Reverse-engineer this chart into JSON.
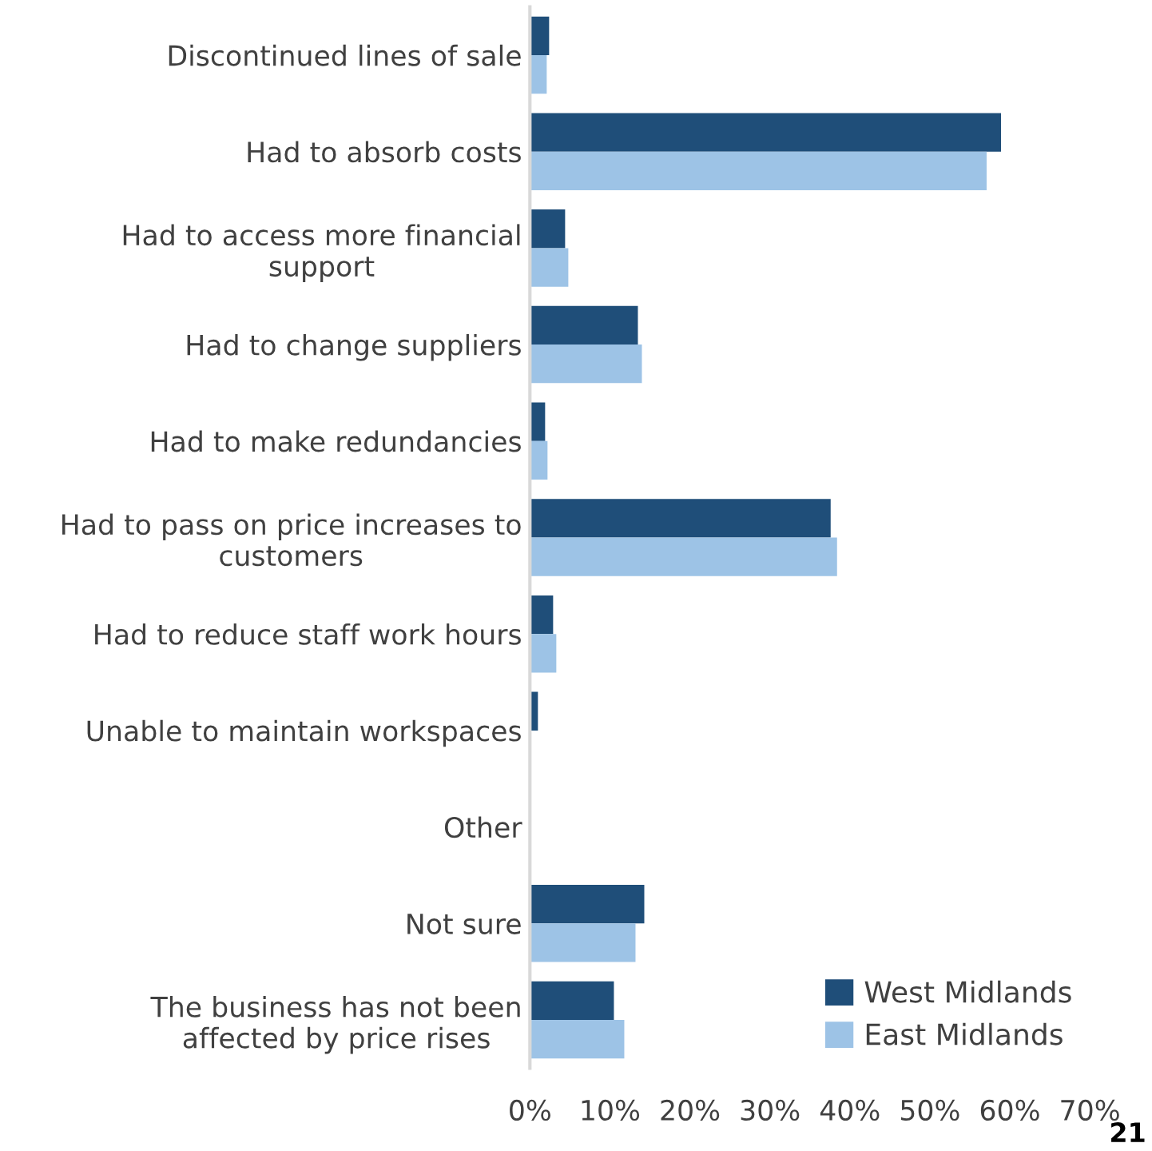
{
  "chart_data": {
    "type": "bar",
    "orientation": "horizontal",
    "categories": [
      "Discontinued lines of sale",
      "Had to absorb costs",
      "Had to access more financial\nsupport",
      "Had to change suppliers",
      "Had to make redundancies",
      "Had to pass on price increases to\ncustomers",
      "Had to reduce staff work hours",
      "Unable to maintain workspaces",
      "Other",
      "Not sure",
      "The business has not been\naffected by price rises"
    ],
    "series": [
      {
        "name": "West Midlands",
        "color": "#1f4e79",
        "values": [
          2.4,
          58.9,
          4.4,
          13.5,
          1.9,
          37.6,
          2.9,
          1.0,
          0,
          14.3,
          10.5
        ]
      },
      {
        "name": "East Midlands",
        "color": "#9dc3e6",
        "values": [
          2.1,
          57.1,
          4.8,
          14.0,
          2.2,
          38.4,
          3.3,
          0,
          0,
          13.2,
          11.8
        ]
      }
    ],
    "xlim": [
      0,
      70
    ],
    "xticks": [
      {
        "value": 0,
        "label": "0%"
      },
      {
        "value": 10,
        "label": "10%"
      },
      {
        "value": 20,
        "label": "20%"
      },
      {
        "value": 30,
        "label": "30%"
      },
      {
        "value": 40,
        "label": "40%"
      },
      {
        "value": 50,
        "label": "50%"
      },
      {
        "value": 60,
        "label": "60%"
      },
      {
        "value": 70,
        "label": "70%"
      }
    ],
    "grid": false,
    "legend": "bottom right",
    "annotations": [
      "21"
    ]
  }
}
